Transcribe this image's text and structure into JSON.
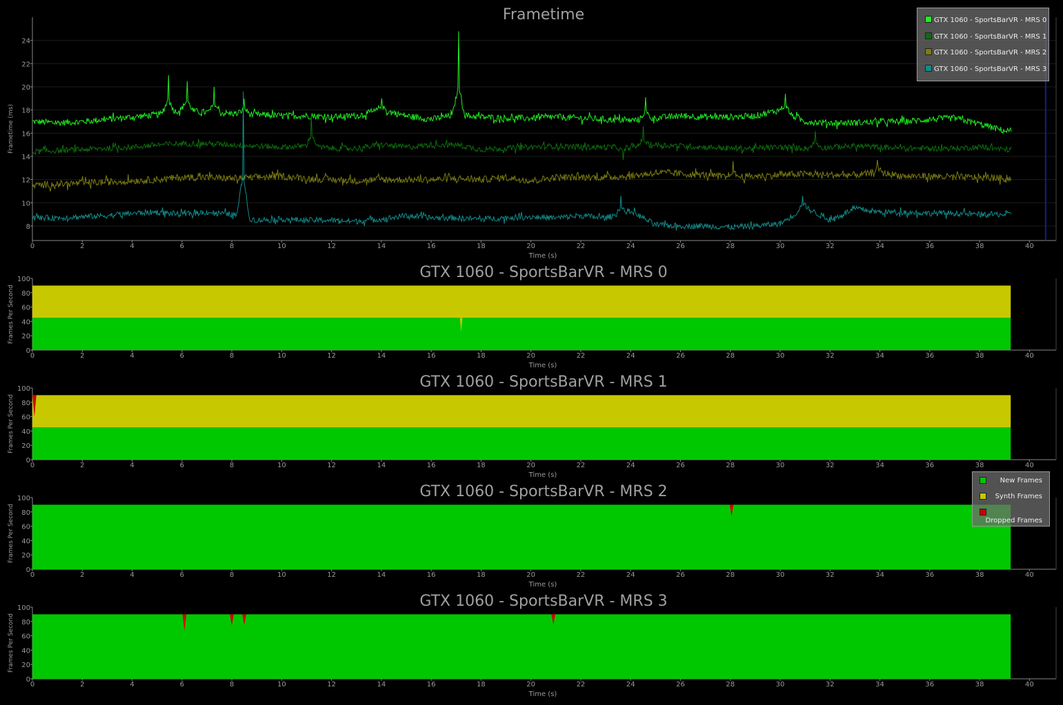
{
  "chart_data": [
    {
      "type": "line",
      "title": "Frametime",
      "xlabel": "Time (s)",
      "ylabel": "Frametime (ms)",
      "xlim": [
        0,
        41.07
      ],
      "ylim": [
        6.75,
        26
      ],
      "xticks": [
        "0",
        "2",
        "4",
        "6",
        "8",
        "10",
        "12",
        "14",
        "16",
        "18",
        "20",
        "22",
        "24",
        "26",
        "28",
        "30",
        "32",
        "34",
        "36",
        "38",
        "40"
      ],
      "yticks": [
        "8",
        "10",
        "12",
        "14",
        "16",
        "18",
        "20",
        "22",
        "24"
      ],
      "grid": "horizontal",
      "legend_position": "top-right",
      "marker_line_x": 40.65,
      "sample_interval_s": 1,
      "end_time_s": 39.3,
      "series": [
        {
          "name": "GTX 1060 - SportsBarVR - MRS 0",
          "color": "#22ee22",
          "noise": 0.28,
          "values": [
            17,
            16.9,
            17,
            17.2,
            17.4,
            17.6,
            18,
            17.8,
            17.7,
            17.6,
            17.5,
            17.5,
            17.4,
            17.5,
            18,
            17.5,
            17.2,
            17.6,
            17.4,
            17.3,
            17.3,
            17.4,
            17.3,
            17.2,
            17.1,
            17.3,
            17.5,
            17.4,
            17.4,
            17.5,
            18,
            17,
            16.9,
            16.9,
            17,
            17,
            17.2,
            17.3,
            16.8,
            16.2
          ],
          "spikes": [
            {
              "t": 5.45,
              "v": 21
            },
            {
              "t": 6.2,
              "v": 20.5
            },
            {
              "t": 7.3,
              "v": 20
            },
            {
              "t": 8.5,
              "v": 19
            },
            {
              "t": 14,
              "v": 19
            },
            {
              "t": 17.1,
              "v": 24.8
            },
            {
              "t": 24.6,
              "v": 19.1
            },
            {
              "t": 30.2,
              "v": 19.4
            }
          ]
        },
        {
          "name": "GTX 1060 - SportsBarVR - MRS 1",
          "color": "#0d6e0d",
          "noise": 0.25,
          "values": [
            14.4,
            14.5,
            14.6,
            14.7,
            14.8,
            15,
            15.1,
            15.1,
            15,
            14.9,
            14.8,
            14.9,
            14.7,
            14.7,
            15,
            14.8,
            15,
            15,
            14.6,
            14.7,
            14.8,
            14.9,
            14.8,
            14.8,
            14.8,
            15,
            14.9,
            14.8,
            14.7,
            14.7,
            14.8,
            14.7,
            14.8,
            14.9,
            14.8,
            14.7,
            14.7,
            14.7,
            14.8,
            14.6
          ],
          "spikes": [
            {
              "t": 11.2,
              "v": 17.6
            },
            {
              "t": 23.7,
              "v": 13.7
            },
            {
              "t": 24.5,
              "v": 16.6
            },
            {
              "t": 31.4,
              "v": 16.2
            }
          ]
        },
        {
          "name": "GTX 1060 - SportsBarVR - MRS 2",
          "color": "#7c7c12",
          "noise": 0.3,
          "values": [
            11.5,
            11.6,
            11.7,
            11.8,
            11.9,
            12,
            12.2,
            12.2,
            12.1,
            12.2,
            12.3,
            12.1,
            12,
            11.9,
            12,
            12,
            12,
            12.1,
            12,
            12.2,
            11.9,
            12.2,
            12.2,
            12.2,
            12.3,
            12.6,
            12.5,
            12.4,
            12.2,
            12.3,
            12.4,
            12.5,
            12.4,
            12.4,
            12.6,
            12.3,
            12.3,
            12.2,
            12.2,
            12.1
          ],
          "spikes": [
            {
              "t": 28.1,
              "v": 13.6
            },
            {
              "t": 33.9,
              "v": 13.7
            }
          ]
        },
        {
          "name": "GTX 1060 - SportsBarVR - MRS 3",
          "color": "#138c8c",
          "noise": 0.25,
          "values": [
            8.7,
            8.7,
            8.8,
            8.9,
            9.1,
            9.2,
            9,
            9.2,
            9,
            8.5,
            8.6,
            8.5,
            8.5,
            8.4,
            8.6,
            8.9,
            8.7,
            8.7,
            8.6,
            8.7,
            8.8,
            8.7,
            8.9,
            8.7,
            9.3,
            8.1,
            8,
            8,
            7.9,
            8,
            8.2,
            9.6,
            8.5,
            9.5,
            9.2,
            9.2,
            9.1,
            9.1,
            9,
            9
          ],
          "spikes": [
            {
              "t": 8.45,
              "v": 19.6
            },
            {
              "t": 23.6,
              "v": 10.6
            },
            {
              "t": 30.9,
              "v": 10.6
            }
          ]
        }
      ]
    },
    {
      "type": "area",
      "title": "GTX 1060 - SportsBarVR - MRS 0",
      "xlabel": "Time (s)",
      "ylabel": "Frames Per Second",
      "xlim": [
        0,
        41.07
      ],
      "ylim": [
        0,
        100
      ],
      "end_time_s": 39.25,
      "yticks": [
        "0",
        "20",
        "40",
        "60",
        "80",
        "100"
      ],
      "new_frames": 45,
      "synth_frames": 45,
      "dropped_frames": 0,
      "events": [
        {
          "kind": "synth",
          "t": 17.2,
          "to": 25
        }
      ]
    },
    {
      "type": "area",
      "title": "GTX 1060 - SportsBarVR - MRS 1",
      "xlabel": "Time (s)",
      "ylabel": "Frames Per Second",
      "xlim": [
        0,
        41.07
      ],
      "ylim": [
        0,
        100
      ],
      "end_time_s": 39.25,
      "yticks": [
        "0",
        "20",
        "40",
        "60",
        "80",
        "100"
      ],
      "new_frames": 45,
      "synth_frames": 45,
      "dropped_frames": 0,
      "events": [
        {
          "kind": "dropped",
          "t": 0.08,
          "to": 60
        }
      ]
    },
    {
      "type": "area",
      "title": "GTX 1060 - SportsBarVR - MRS 2",
      "xlabel": "Time (s)",
      "ylabel": "Frames Per Second",
      "xlim": [
        0,
        41.07
      ],
      "ylim": [
        0,
        100
      ],
      "end_time_s": 39.25,
      "yticks": [
        "0",
        "20",
        "40",
        "60",
        "80",
        "100"
      ],
      "new_frames": 90,
      "synth_frames": 0,
      "dropped_frames": 0,
      "events": [
        {
          "kind": "dropped",
          "t": 28.05,
          "to": 74
        }
      ]
    },
    {
      "type": "area",
      "title": "GTX 1060 - SportsBarVR - MRS 3",
      "xlabel": "Time (s)",
      "ylabel": "Frames Per Second",
      "xlim": [
        0,
        41.07
      ],
      "ylim": [
        0,
        100
      ],
      "end_time_s": 39.25,
      "yticks": [
        "0",
        "20",
        "40",
        "60",
        "80",
        "100"
      ],
      "new_frames": 90,
      "synth_frames": 0,
      "dropped_frames": 0,
      "events": [
        {
          "kind": "dropped",
          "t": 6.1,
          "to": 67
        },
        {
          "kind": "dropped",
          "t": 8.0,
          "to": 74
        },
        {
          "kind": "dropped",
          "t": 8.5,
          "to": 75
        },
        {
          "kind": "dropped",
          "t": 20.9,
          "to": 76
        }
      ]
    }
  ],
  "fps_legend": [
    {
      "label": "New Frames",
      "color": "#00c800"
    },
    {
      "label": "Synth Frames",
      "color": "#c8c800"
    },
    {
      "label": "Dropped Frames",
      "color": "#d00000"
    }
  ],
  "colors": {
    "new": "#00c800",
    "synth": "#c8c800",
    "dropped": "#d00000",
    "axis": "#8a8a8a",
    "text": "#9a9a9a",
    "marker": "#1a1a9a"
  }
}
